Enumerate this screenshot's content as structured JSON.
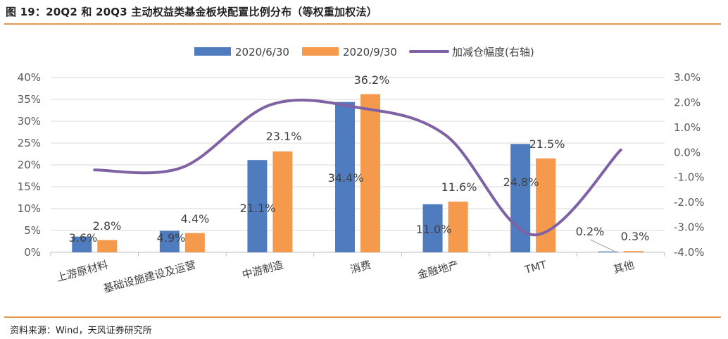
{
  "title": "图 19：20Q2 和 20Q3 主动权益类基金板块配置比例分布（等权重加权法）",
  "source": "资料来源：Wind，天风证券研究所",
  "colors": {
    "series1": "#4f7bbf",
    "series2": "#f59a4c",
    "line": "#7f62a3",
    "rule": "#e49a4f"
  },
  "chart_data": {
    "type": "bar",
    "categories": [
      "上游原材料",
      "基础设施建设及运营",
      "中游制造",
      "消费",
      "金融地产",
      "TMT",
      "其他"
    ],
    "series": [
      {
        "name": "2020/6/30",
        "values": [
          3.6,
          4.9,
          21.1,
          34.4,
          11.0,
          24.8,
          0.2
        ],
        "labels": [
          "3.6%",
          "4.9%",
          "21.1%",
          "34.4%",
          "11.0%",
          "24.8%",
          "0.2%"
        ]
      },
      {
        "name": "2020/9/30",
        "values": [
          2.8,
          4.4,
          23.1,
          36.2,
          11.6,
          21.5,
          0.3
        ],
        "labels": [
          "2.8%",
          "4.4%",
          "23.1%",
          "36.2%",
          "11.6%",
          "21.5%",
          "0.3%"
        ]
      }
    ],
    "line": {
      "name": "加减仓幅度(右轴)",
      "values": [
        -0.7,
        -0.6,
        1.9,
        1.8,
        0.7,
        -3.3,
        0.1
      ]
    },
    "ylim": [
      0,
      40
    ],
    "yticks": [
      "0%",
      "5%",
      "10%",
      "15%",
      "20%",
      "25%",
      "30%",
      "35%",
      "40%"
    ],
    "y2lim": [
      -4,
      3
    ],
    "y2ticks": [
      "-4.0%",
      "-3.0%",
      "-2.0%",
      "-1.0%",
      "0.0%",
      "1.0%",
      "2.0%",
      "3.0%"
    ],
    "legend_position": "top"
  }
}
